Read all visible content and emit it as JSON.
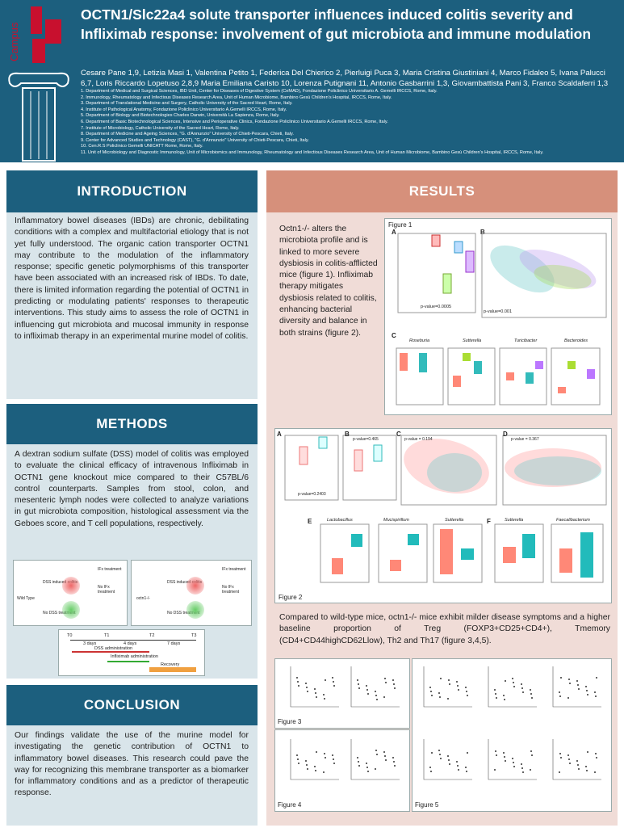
{
  "header": {
    "title": "OCTN1/Slc22a4 solute transporter influences induced colitis severity and Infliximab response: involvement of gut microbiota and immune modulation",
    "authors": "Cesare Pane 1,9, Letizia Masi 1, Valentina Petito 1, Federica Del Chierico 2, Pierluigi Puca 3, Maria Cristina Giustiniani 4, Marco Fidaleo 5, Ivana Palucci 6,7, Loris Riccardo Lopetuso 2,8,9 Maria Emiliana Caristo 10, Lorenza Putignani 11, Antonio Gasbarrini 1,3, Giovambattista Pani 3, Franco Scaldaferri 1,3",
    "affiliations": [
      "1. Department of Medical and Surgical Sciences, IBD Unit, Center for Diseases of Digestive System (CeMAD), Fondazione Policlinico Universitario A. Gemelli IRCCS, Rome, Italy.",
      "2. Immunology, Rheumatology and Infectious Diseases Research Area, Unit of Human Microbiome, Bambino Gesù Children's Hospital, IRCCS, Rome, Italy.",
      "3. Department of Translational Medicine and Surgery, Catholic University of the Sacred Heart, Rome, Italy.",
      "4. Institute of Pathological Anatomy, Fondazione Policlinico Universitario A.Gemelli IRCCS, Rome, Italy.",
      "5. Department of Biology and Biotechnologies Charles Darwin, Università La Sapienza, Rome, Italy.",
      "6. Department of Basic Biotechnological Sciences, Intensive and Perioperative Clinics, Fondazione Policlinico Universitario A.Gemelli IRCCS, Rome, Italy.",
      "7. Institute of Microbiology, Catholic University of the Sacred Heart, Rome, Italy.",
      "8. Department of Medicine and Ageing Sciences, \"G. d'Annunzio\" University of Chieti-Pescara, Chieti, Italy.",
      "9. Center for Advanced Studies and Technology (CAST), \"G. d'Annunzio\" University of Chieti-Pescara, Chieti, Italy.",
      "10. Cen.R.S Policlinico Gemelli UNICATT Rome, Rome, Italy.",
      "11. Unit of Microbiology and Diagnostic Immunology, Unit of Microbiomics and Immunology, Rheumatology and Infectious Diseases Research Area, Unit of Human Microbiome, Bambino Gesù Children's Hospital, IRCCS, Rome, Italy."
    ],
    "logo": "Campus"
  },
  "introduction": {
    "heading": "INTRODUCTION",
    "body": "Inflammatory bowel diseases (IBDs) are chronic, debilitating conditions with a complex and multifactorial etiology that is not yet fully understood. The organic cation transporter OCTN1 may contribute to the modulation of the inflammatory response; specific genetic polymorphisms of this transporter have been associated with an increased risk of IBDs. To date, there is limited information regarding the potential of OCTN1 in predicting or modulating patients' responses to therapeutic interventions. This study aims to assess the role of OCTN1 in influencing gut microbiota and mucosal immunity in response to infliximab therapy in an experimental murine model of colitis."
  },
  "methods": {
    "heading": "METHODS",
    "body": "A dextran sodium sulfate (DSS) model of colitis was employed to evaluate the clinical efficacy of intravenous Infliximab in OCTN1 gene knockout mice compared to their C57BL/6 control counterparts. Samples from stool, colon, and mesenteric lymph nodes were collected to analyze variations in gut microbiota composition, histological assessment via the Geboes score, and T cell populations, respectively.",
    "diagram": {
      "left_groups": [
        "Wild Type",
        "DSS induced colitis",
        "No DSS treatment"
      ],
      "right_groups": [
        "octn1-/-",
        "DSS induced colitis",
        "No DSS treatment"
      ],
      "treatments": [
        "IFx treatment",
        "No IFx treatment"
      ],
      "timeline": {
        "points": [
          "T0",
          "T1",
          "T2",
          "T3"
        ],
        "durations": [
          "3 days",
          "4 days",
          "7 days"
        ],
        "phases": [
          "DSS administration",
          "Infliximab administration",
          "Recovery"
        ]
      }
    }
  },
  "conclusion": {
    "heading": "CONCLUSION",
    "body": "Our findings validate the use of the murine model for investigating the genetic contribution of OCTN1 to inflammatory bowel diseases. This research could pave the way for recognizing this membrane transporter as a biomarker for inflammatory conditions and as a predictor of therapeutic response."
  },
  "results": {
    "heading": "RESULTS",
    "text1": "Octn1-/- alters the microbiota profile and is linked to more severe dysbiosis in colitis-afflicted mice (figure 1). Infliximab therapy mitigates dysbiosis related to colitis, enhancing bacterial diversity and balance in both strains (figure 2).",
    "text2": "Compared to wild-type mice, octn1-/- mice exhibit milder disease symptoms and a higher baseline proportion of Treg (FOXP3+CD25+CD4+), Tmemory (CD4+CD44highCD62Llow), Th2 and Th17 (figure 3,4,5).",
    "figure1": {
      "label": "Figure 1",
      "panels": [
        "A",
        "B",
        "C"
      ],
      "pvalues": [
        "p-value=0.0005",
        "p-value=0.001"
      ],
      "taxa": [
        "Roseburia",
        "Sutterella",
        "Turicibacter",
        "Bacteroides"
      ]
    },
    "figure2": {
      "label": "Figure 2",
      "panels": [
        "A",
        "B",
        "C",
        "D",
        "E",
        "F"
      ],
      "pvalues": [
        "p-value=0.2403",
        "p-value=0.465",
        "p-value = 0.194",
        "p-value = 0.367"
      ],
      "taxa": [
        "Lactobacillus",
        "Mucispirillum",
        "Sutterella",
        "Sutterella",
        "Faecalibacterium"
      ]
    },
    "figure3": {
      "label": "Figure 3"
    },
    "figure4": {
      "label": "Figure 4"
    },
    "figure5": {
      "label": "Figure 5"
    }
  }
}
